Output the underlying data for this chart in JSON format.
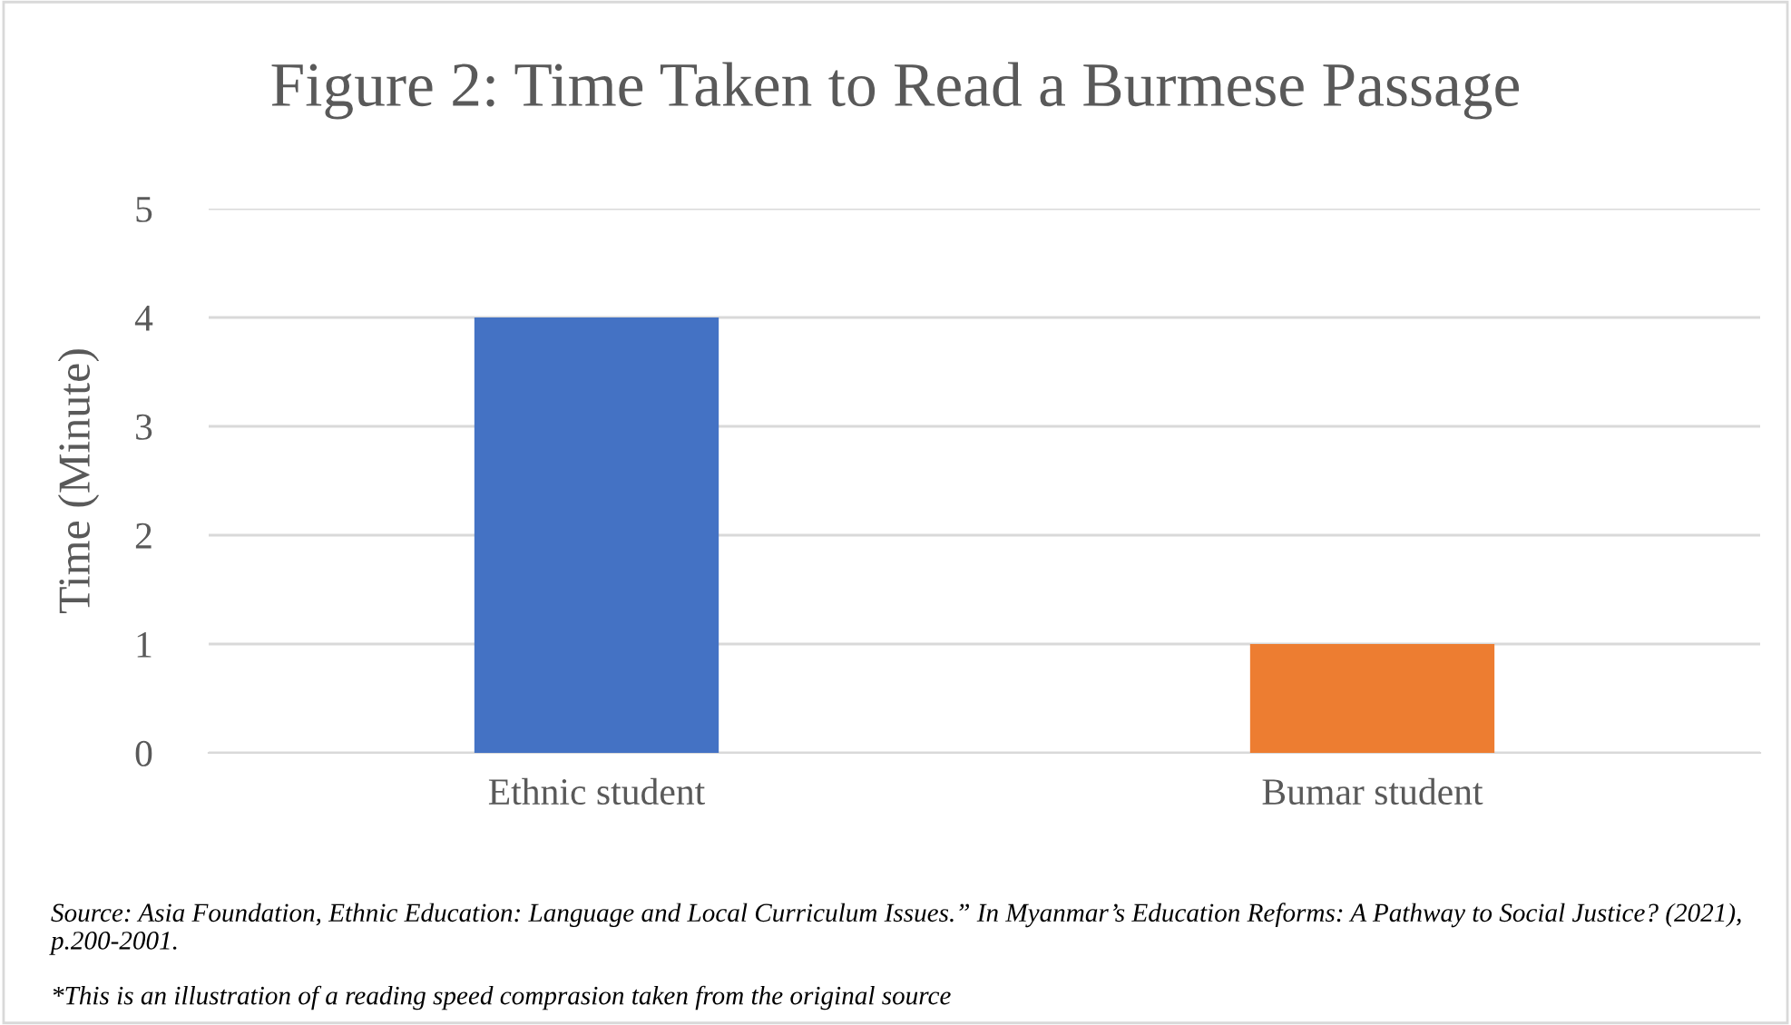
{
  "chart_data": {
    "type": "bar",
    "title": "Figure 2: Time Taken to Read a Burmese Passage",
    "ylabel": "Time (Minute)",
    "categories": [
      "Ethnic student",
      "Bumar student"
    ],
    "values": [
      4,
      1
    ],
    "colors": [
      "#4472c4",
      "#ed7d31"
    ],
    "ylim": [
      0,
      5
    ],
    "yticks": [
      0,
      1,
      2,
      3,
      4,
      5
    ],
    "grid": "y",
    "legend": false,
    "annotations": [
      "Source: Asia Foundation, Ethnic Education: Language and Local Curriculum Issues.” In Myanmar’s Education Reforms: A Pathway to Social Justice? (2021), p.200-2001.",
      "*This is an illustration of a reading speed comprasion taken from the original source"
    ]
  }
}
